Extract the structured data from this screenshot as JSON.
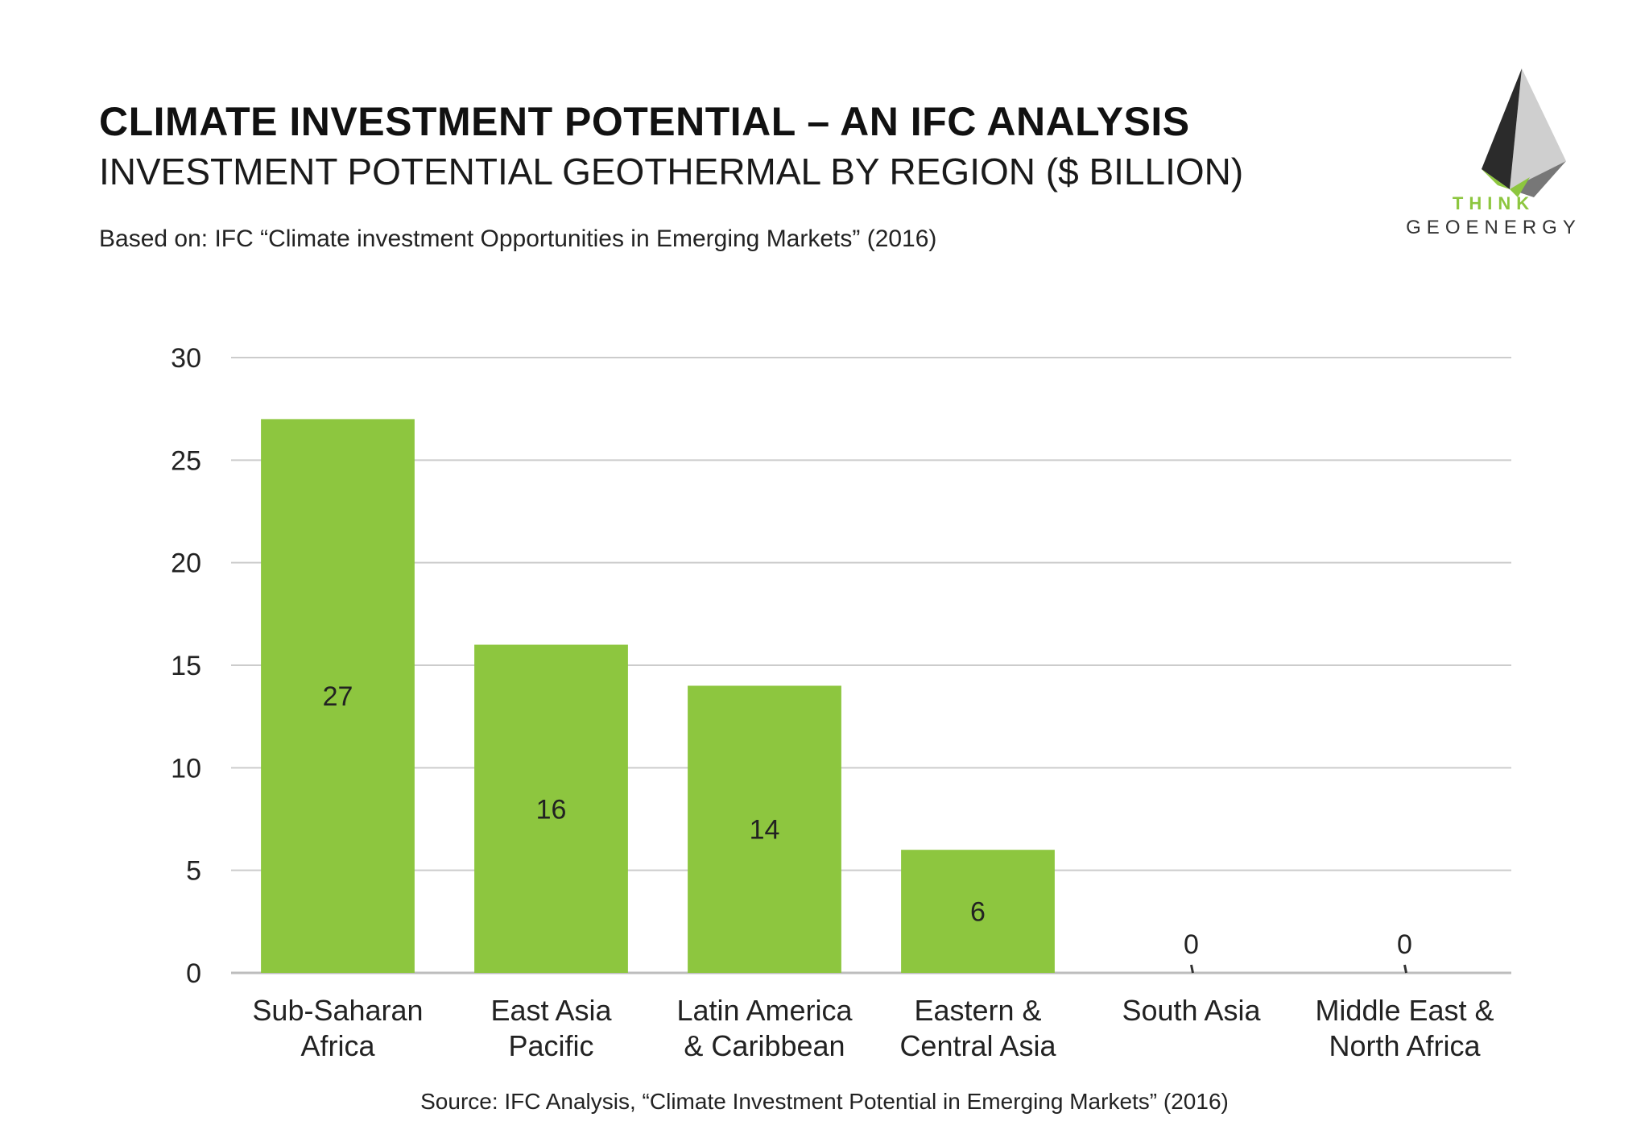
{
  "header": {
    "title": "CLIMATE INVESTMENT POTENTIAL – AN IFC ANALYSIS",
    "subtitle": "INVESTMENT POTENTIAL GEOTHERMAL BY REGION ($ BILLION)",
    "based_on": "Based on: IFC “Climate investment Opportunities in Emerging Markets” (2016)"
  },
  "logo": {
    "line1": "THINK",
    "line2": "GEOENERGY",
    "accent_color": "#8dc63f",
    "dark_color": "#333333"
  },
  "footer": {
    "source": "Source: IFC Analysis, “Climate Investment Potential in Emerging Markets” (2016)"
  },
  "chart_data": {
    "type": "bar",
    "title": "",
    "xlabel": "",
    "ylabel": "",
    "ylim": [
      0,
      30
    ],
    "yticks": [
      0,
      5,
      10,
      15,
      20,
      25,
      30
    ],
    "grid": true,
    "bar_color": "#8dc63f",
    "categories": [
      [
        "Sub-Saharan",
        "Africa"
      ],
      [
        "East Asia",
        "Pacific"
      ],
      [
        "Latin America",
        "& Caribbean"
      ],
      [
        "Eastern &",
        "Central Asia"
      ],
      [
        "South Asia"
      ],
      [
        "Middle East &",
        "North Africa"
      ]
    ],
    "values": [
      27,
      16,
      14,
      6,
      0,
      0
    ]
  }
}
